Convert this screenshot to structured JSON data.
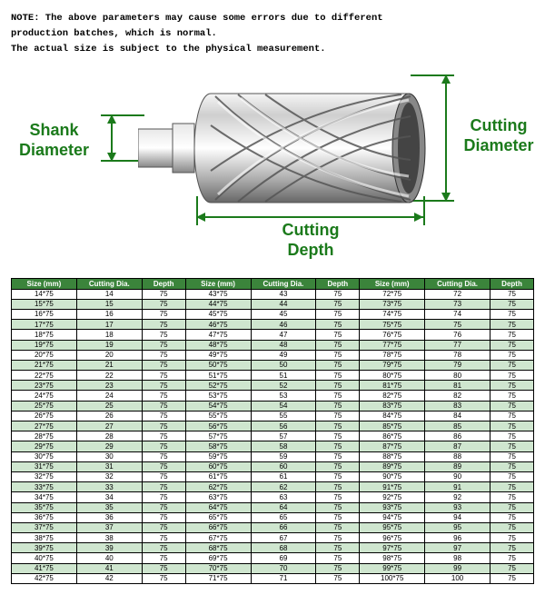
{
  "note": {
    "line1": "NOTE: The above parameters may cause some errors due to different",
    "line2": "production batches, which is normal.",
    "line3": "The actual size is subject to the physical measurement."
  },
  "labels": {
    "shank": "Shank\nDiameter",
    "cutting_dia": "Cutting\nDiameter",
    "cutting_depth": "Cutting\nDepth"
  },
  "colors": {
    "accent": "#1b7a1b",
    "header_bg": "#3b843b",
    "alt_row": "#cfe6cf"
  },
  "table": {
    "headers": [
      "Size (mm)",
      "Cutting Dia.",
      "Depth",
      "Size (mm)",
      "Cutting Dia.",
      "Depth",
      "Size (mm)",
      "Cutting Dia.",
      "Depth"
    ],
    "rows": [
      [
        "14*75",
        "14",
        "75",
        "43*75",
        "43",
        "75",
        "72*75",
        "72",
        "75"
      ],
      [
        "15*75",
        "15",
        "75",
        "44*75",
        "44",
        "75",
        "73*75",
        "73",
        "75"
      ],
      [
        "16*75",
        "16",
        "75",
        "45*75",
        "45",
        "75",
        "74*75",
        "74",
        "75"
      ],
      [
        "17*75",
        "17",
        "75",
        "46*75",
        "46",
        "75",
        "75*75",
        "75",
        "75"
      ],
      [
        "18*75",
        "18",
        "75",
        "47*75",
        "47",
        "75",
        "76*75",
        "76",
        "75"
      ],
      [
        "19*75",
        "19",
        "75",
        "48*75",
        "48",
        "75",
        "77*75",
        "77",
        "75"
      ],
      [
        "20*75",
        "20",
        "75",
        "49*75",
        "49",
        "75",
        "78*75",
        "78",
        "75"
      ],
      [
        "21*75",
        "21",
        "75",
        "50*75",
        "50",
        "75",
        "79*75",
        "79",
        "75"
      ],
      [
        "22*75",
        "22",
        "75",
        "51*75",
        "51",
        "75",
        "80*75",
        "80",
        "75"
      ],
      [
        "23*75",
        "23",
        "75",
        "52*75",
        "52",
        "75",
        "81*75",
        "81",
        "75"
      ],
      [
        "24*75",
        "24",
        "75",
        "53*75",
        "53",
        "75",
        "82*75",
        "82",
        "75"
      ],
      [
        "25*75",
        "25",
        "75",
        "54*75",
        "54",
        "75",
        "83*75",
        "83",
        "75"
      ],
      [
        "26*75",
        "26",
        "75",
        "55*75",
        "55",
        "75",
        "84*75",
        "84",
        "75"
      ],
      [
        "27*75",
        "27",
        "75",
        "56*75",
        "56",
        "75",
        "85*75",
        "85",
        "75"
      ],
      [
        "28*75",
        "28",
        "75",
        "57*75",
        "57",
        "75",
        "86*75",
        "86",
        "75"
      ],
      [
        "29*75",
        "29",
        "75",
        "58*75",
        "58",
        "75",
        "87*75",
        "87",
        "75"
      ],
      [
        "30*75",
        "30",
        "75",
        "59*75",
        "59",
        "75",
        "88*75",
        "88",
        "75"
      ],
      [
        "31*75",
        "31",
        "75",
        "60*75",
        "60",
        "75",
        "89*75",
        "89",
        "75"
      ],
      [
        "32*75",
        "32",
        "75",
        "61*75",
        "61",
        "75",
        "90*75",
        "90",
        "75"
      ],
      [
        "33*75",
        "33",
        "75",
        "62*75",
        "62",
        "75",
        "91*75",
        "91",
        "75"
      ],
      [
        "34*75",
        "34",
        "75",
        "63*75",
        "63",
        "75",
        "92*75",
        "92",
        "75"
      ],
      [
        "35*75",
        "35",
        "75",
        "64*75",
        "64",
        "75",
        "93*75",
        "93",
        "75"
      ],
      [
        "36*75",
        "36",
        "75",
        "65*75",
        "65",
        "75",
        "94*75",
        "94",
        "75"
      ],
      [
        "37*75",
        "37",
        "75",
        "66*75",
        "66",
        "75",
        "95*75",
        "95",
        "75"
      ],
      [
        "38*75",
        "38",
        "75",
        "67*75",
        "67",
        "75",
        "96*75",
        "96",
        "75"
      ],
      [
        "39*75",
        "39",
        "75",
        "68*75",
        "68",
        "75",
        "97*75",
        "97",
        "75"
      ],
      [
        "40*75",
        "40",
        "75",
        "69*75",
        "69",
        "75",
        "98*75",
        "98",
        "75"
      ],
      [
        "41*75",
        "41",
        "75",
        "70*75",
        "70",
        "75",
        "99*75",
        "99",
        "75"
      ],
      [
        "42*75",
        "42",
        "75",
        "71*75",
        "71",
        "75",
        "100*75",
        "100",
        "75"
      ]
    ]
  }
}
